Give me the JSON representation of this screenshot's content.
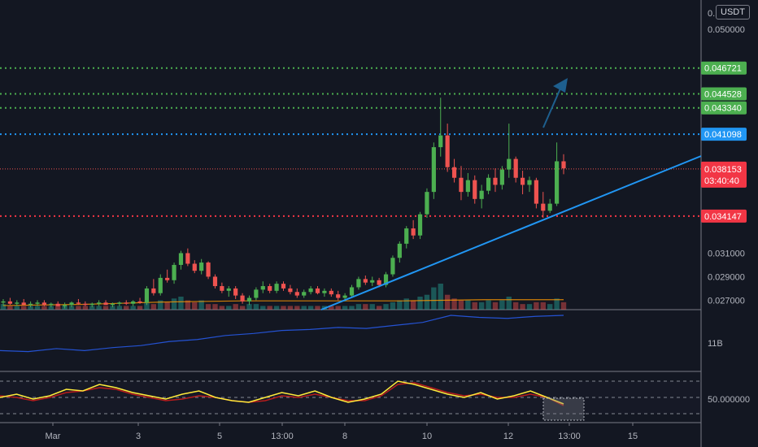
{
  "header": {
    "currency": "USDT",
    "top_tick": "0."
  },
  "price_axis": {
    "ticks": [
      "0.050000",
      "0.031000",
      "0.029000",
      "0.027000"
    ],
    "volume_pane_tick": "11B",
    "rsi_pane_tick": "50.000000"
  },
  "time_axis": {
    "labels": [
      "Mar",
      "3",
      "5",
      "13:00",
      "8",
      "10",
      "12",
      "13:00",
      "15"
    ]
  },
  "levels": [
    {
      "value": "0.046721",
      "color": "#4caf50",
      "style": "dotted"
    },
    {
      "value": "0.044528",
      "color": "#4caf50",
      "style": "dotted"
    },
    {
      "value": "0.043340",
      "color": "#4caf50",
      "style": "dotted"
    },
    {
      "value": "0.041098",
      "color": "#2196f3",
      "style": "dotted"
    },
    {
      "value": "0.034147",
      "color": "#f23645",
      "style": "dotted"
    }
  ],
  "current_price": {
    "value": "0.038153",
    "countdown": "03:40:40",
    "color": "#f23645"
  },
  "colors": {
    "up": "#26a69a",
    "up_candle": "#4caf50",
    "down": "#ef5350",
    "trendline": "#2196f3",
    "background": "#131722"
  },
  "chart_data": {
    "type": "candlestick",
    "price_ylim": [
      0.0262,
      0.0525
    ],
    "x_range": [
      0,
      88
    ],
    "candles": [
      [
        0.0268,
        0.0271,
        0.0265,
        0.0269
      ],
      [
        0.0269,
        0.0272,
        0.0266,
        0.0267
      ],
      [
        0.0267,
        0.027,
        0.0265,
        0.0268
      ],
      [
        0.0268,
        0.0271,
        0.0266,
        0.0266
      ],
      [
        0.0266,
        0.0269,
        0.0264,
        0.0267
      ],
      [
        0.0267,
        0.027,
        0.0265,
        0.0268
      ],
      [
        0.0268,
        0.027,
        0.0265,
        0.0266
      ],
      [
        0.0266,
        0.0268,
        0.0264,
        0.0267
      ],
      [
        0.0267,
        0.0269,
        0.0265,
        0.0265
      ],
      [
        0.0265,
        0.0268,
        0.0263,
        0.0266
      ],
      [
        0.0266,
        0.0269,
        0.0264,
        0.0268
      ],
      [
        0.0268,
        0.0271,
        0.0266,
        0.0267
      ],
      [
        0.0267,
        0.0269,
        0.0265,
        0.0266
      ],
      [
        0.0266,
        0.0268,
        0.0264,
        0.0267
      ],
      [
        0.0267,
        0.027,
        0.0265,
        0.0268
      ],
      [
        0.0268,
        0.027,
        0.0266,
        0.0266
      ],
      [
        0.0266,
        0.0268,
        0.0264,
        0.0267
      ],
      [
        0.0267,
        0.0269,
        0.0265,
        0.0268
      ],
      [
        0.0268,
        0.027,
        0.0266,
        0.0267
      ],
      [
        0.0267,
        0.027,
        0.0265,
        0.0269
      ],
      [
        0.0269,
        0.0272,
        0.0267,
        0.0268
      ],
      [
        0.0268,
        0.0282,
        0.0266,
        0.028
      ],
      [
        0.028,
        0.0288,
        0.0274,
        0.0276
      ],
      [
        0.0276,
        0.0292,
        0.0274,
        0.0289
      ],
      [
        0.0289,
        0.0296,
        0.0285,
        0.0287
      ],
      [
        0.0287,
        0.0302,
        0.0284,
        0.03
      ],
      [
        0.03,
        0.0312,
        0.0296,
        0.031
      ],
      [
        0.031,
        0.0314,
        0.0299,
        0.0301
      ],
      [
        0.0301,
        0.0304,
        0.0293,
        0.0295
      ],
      [
        0.0295,
        0.0305,
        0.0292,
        0.0302
      ],
      [
        0.0302,
        0.0303,
        0.0288,
        0.029
      ],
      [
        0.029,
        0.0292,
        0.028,
        0.0282
      ],
      [
        0.0282,
        0.0285,
        0.0276,
        0.0278
      ],
      [
        0.0278,
        0.0282,
        0.0273,
        0.028
      ],
      [
        0.028,
        0.0282,
        0.0271,
        0.0274
      ],
      [
        0.0274,
        0.0276,
        0.0267,
        0.0269
      ],
      [
        0.0269,
        0.0274,
        0.0266,
        0.0272
      ],
      [
        0.0272,
        0.0281,
        0.027,
        0.0279
      ],
      [
        0.0279,
        0.0286,
        0.0276,
        0.0282
      ],
      [
        0.0282,
        0.0284,
        0.0276,
        0.0278
      ],
      [
        0.0278,
        0.0286,
        0.0276,
        0.0284
      ],
      [
        0.0284,
        0.0286,
        0.0278,
        0.028
      ],
      [
        0.028,
        0.0283,
        0.0275,
        0.0277
      ],
      [
        0.0277,
        0.028,
        0.0272,
        0.0274
      ],
      [
        0.0274,
        0.0279,
        0.0272,
        0.0277
      ],
      [
        0.0277,
        0.0282,
        0.0275,
        0.028
      ],
      [
        0.028,
        0.0282,
        0.0275,
        0.0276
      ],
      [
        0.0276,
        0.028,
        0.0273,
        0.0278
      ],
      [
        0.0278,
        0.028,
        0.0273,
        0.0275
      ],
      [
        0.0275,
        0.0278,
        0.027,
        0.0272
      ],
      [
        0.0272,
        0.0276,
        0.0269,
        0.0274
      ],
      [
        0.0274,
        0.0283,
        0.0272,
        0.0281
      ],
      [
        0.0281,
        0.029,
        0.0279,
        0.0288
      ],
      [
        0.0288,
        0.0291,
        0.0283,
        0.0285
      ],
      [
        0.0285,
        0.029,
        0.0282,
        0.0287
      ],
      [
        0.0287,
        0.0289,
        0.0281,
        0.0283
      ],
      [
        0.0283,
        0.0294,
        0.0281,
        0.0292
      ],
      [
        0.0292,
        0.0308,
        0.029,
        0.0306
      ],
      [
        0.0306,
        0.032,
        0.0302,
        0.0318
      ],
      [
        0.0318,
        0.0333,
        0.0314,
        0.0331
      ],
      [
        0.0331,
        0.0338,
        0.0322,
        0.0325
      ],
      [
        0.0325,
        0.0345,
        0.0322,
        0.0343
      ],
      [
        0.0343,
        0.0365,
        0.034,
        0.0362
      ],
      [
        0.0362,
        0.0404,
        0.0356,
        0.04
      ],
      [
        0.04,
        0.0442,
        0.0392,
        0.041
      ],
      [
        0.041,
        0.042,
        0.0379,
        0.0383
      ],
      [
        0.0383,
        0.039,
        0.037,
        0.0374
      ],
      [
        0.0374,
        0.0384,
        0.0355,
        0.0362
      ],
      [
        0.0362,
        0.0378,
        0.0358,
        0.0372
      ],
      [
        0.0372,
        0.0376,
        0.0352,
        0.0356
      ],
      [
        0.0356,
        0.0368,
        0.0348,
        0.0363
      ],
      [
        0.0363,
        0.0377,
        0.036,
        0.0374
      ],
      [
        0.0374,
        0.0382,
        0.0362,
        0.0368
      ],
      [
        0.0368,
        0.0384,
        0.0364,
        0.0381
      ],
      [
        0.0381,
        0.042,
        0.0374,
        0.039
      ],
      [
        0.039,
        0.0392,
        0.037,
        0.0374
      ],
      [
        0.0374,
        0.038,
        0.036,
        0.0368
      ],
      [
        0.0368,
        0.0375,
        0.0362,
        0.0372
      ],
      [
        0.0372,
        0.0374,
        0.0348,
        0.0352
      ],
      [
        0.0352,
        0.0362,
        0.034,
        0.0346
      ],
      [
        0.0346,
        0.0356,
        0.0344,
        0.0352
      ],
      [
        0.0352,
        0.0404,
        0.035,
        0.0388
      ],
      [
        0.0388,
        0.0394,
        0.0377,
        0.0382
      ]
    ],
    "volume": [
      3,
      2,
      2,
      2,
      2,
      2,
      2,
      2,
      2,
      2,
      2,
      2,
      2,
      2,
      2,
      2,
      2,
      2,
      2,
      2,
      2,
      4,
      3,
      5,
      4,
      6,
      7,
      5,
      4,
      5,
      3,
      3,
      2,
      2,
      3,
      2,
      3,
      3,
      2,
      2,
      2,
      2,
      2,
      2,
      2,
      2,
      2,
      2,
      2,
      2,
      2,
      2,
      3,
      3,
      3,
      2,
      3,
      4,
      5,
      6,
      5,
      7,
      8,
      12,
      14,
      8,
      6,
      5,
      5,
      4,
      4,
      5,
      4,
      5,
      7,
      4,
      3,
      3,
      4,
      4,
      3,
      6,
      4
    ],
    "volume_ma": [
      0.0271,
      0.0272,
      0.0274,
      0.0275,
      0.0275,
      0.0275,
      0.0276,
      0.0276
    ],
    "obv": [
      0.3,
      0.28,
      0.34,
      0.3,
      0.36,
      0.4,
      0.48,
      0.52,
      0.6,
      0.64,
      0.7,
      0.72,
      0.76,
      0.74,
      0.8,
      0.86,
      1.0,
      0.96,
      0.94,
      0.98,
      1.0
    ],
    "rsi_fast": [
      50,
      54,
      48,
      52,
      60,
      58,
      66,
      62,
      56,
      52,
      48,
      54,
      58,
      50,
      46,
      44,
      50,
      56,
      52,
      58,
      50,
      44,
      48,
      54,
      70,
      66,
      60,
      54,
      50,
      56,
      48,
      52,
      58,
      50,
      42
    ],
    "rsi_slow": [
      52,
      50,
      46,
      50,
      56,
      58,
      62,
      60,
      54,
      50,
      46,
      48,
      52,
      50,
      46,
      44,
      46,
      52,
      50,
      54,
      50,
      46,
      46,
      52,
      66,
      68,
      62,
      56,
      52,
      54,
      50,
      50,
      54,
      50,
      40
    ],
    "rsi_ylim": [
      20,
      80
    ]
  }
}
